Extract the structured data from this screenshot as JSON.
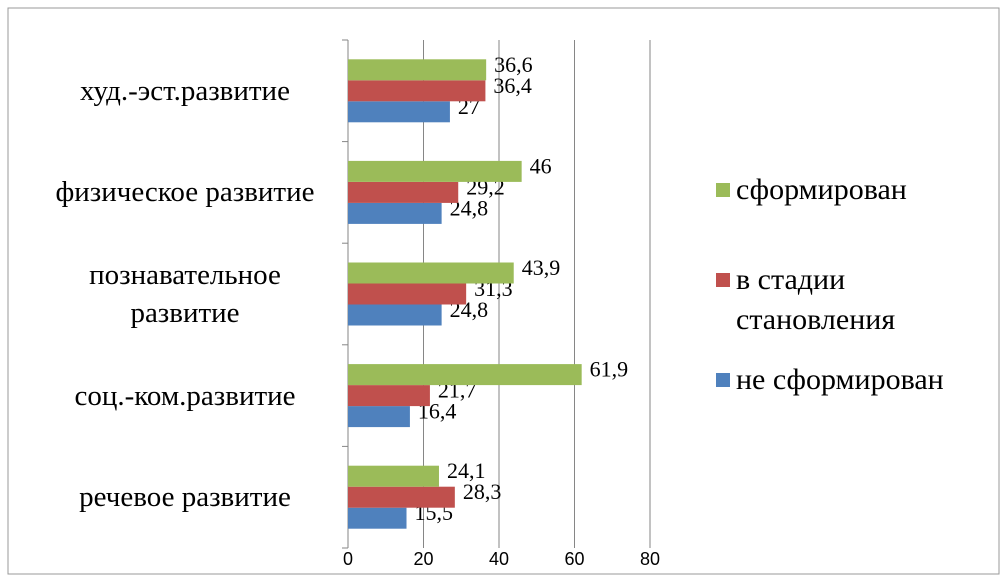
{
  "chart_data": {
    "type": "barh",
    "categories": [
      "речевое развитие",
      "соц.-ком.развитие",
      "познавательное развитие",
      "физическое развитие",
      "худ.-эст.развитие"
    ],
    "series": [
      {
        "name": "не сформирован",
        "color": "#4f81bd",
        "values": [
          15.5,
          16.4,
          24.8,
          24.8,
          27
        ],
        "value_labels": [
          "15,5",
          "16,4",
          "24,8",
          "24,8",
          "27"
        ]
      },
      {
        "name": "в стадии становления",
        "color": "#c0504d",
        "values": [
          28.3,
          21.7,
          31.3,
          29.2,
          36.4
        ],
        "value_labels": [
          "28,3",
          "21,7",
          "31,3",
          "29,2",
          "36,4"
        ]
      },
      {
        "name": "сформирован",
        "color": "#9bbb59",
        "values": [
          24.1,
          61.9,
          43.9,
          46,
          36.6
        ],
        "value_labels": [
          "24,1",
          "61,9",
          "43,9",
          "46",
          "36,6"
        ]
      }
    ],
    "xlim": [
      0,
      80
    ],
    "xticks": [
      0,
      20,
      40,
      60,
      80
    ],
    "grid": true
  }
}
